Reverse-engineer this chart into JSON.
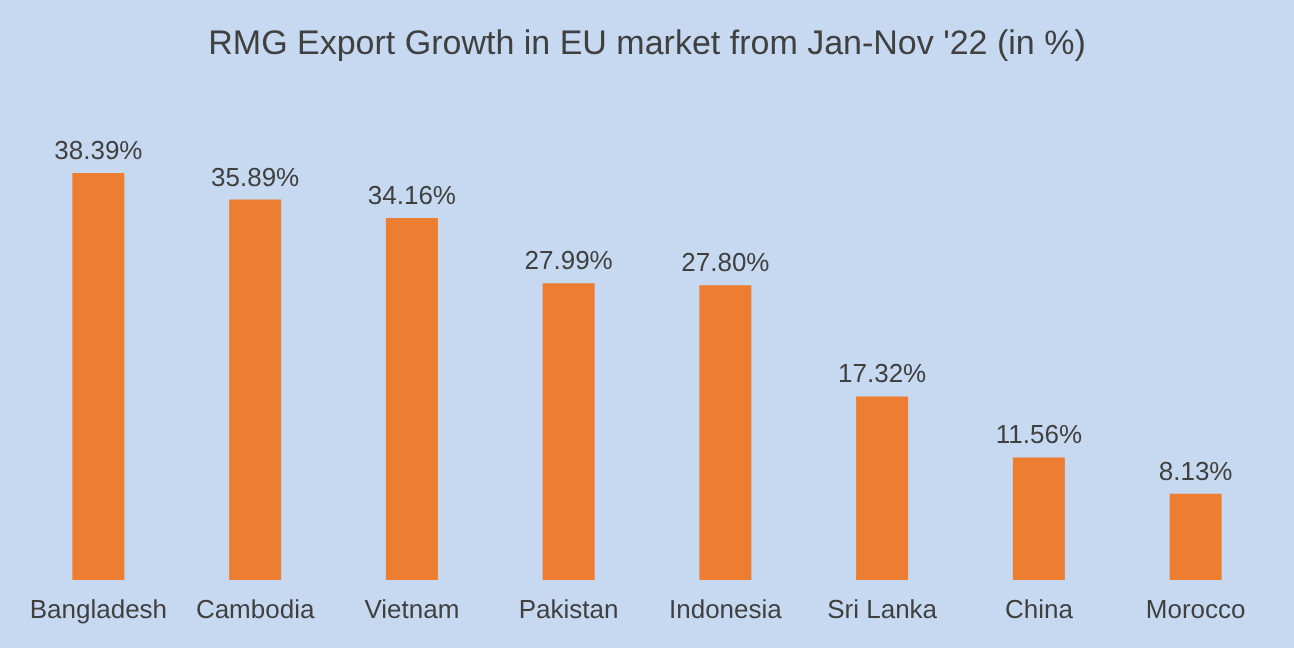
{
  "chart_data": {
    "type": "bar",
    "title": "RMG Export Growth in EU market from Jan-Nov '22 (in %)",
    "categories": [
      "Bangladesh",
      "Cambodia",
      "Vietnam",
      "Pakistan",
      "Indonesia",
      "Sri Lanka",
      "China",
      "Morocco"
    ],
    "values": [
      38.39,
      35.89,
      34.16,
      27.99,
      27.8,
      17.32,
      11.56,
      8.13
    ],
    "value_labels": [
      "38.39%",
      "35.89%",
      "34.16%",
      "27.99%",
      "27.80%",
      "17.32%",
      "11.56%",
      "8.13%"
    ],
    "color": "#ed7d31"
  }
}
